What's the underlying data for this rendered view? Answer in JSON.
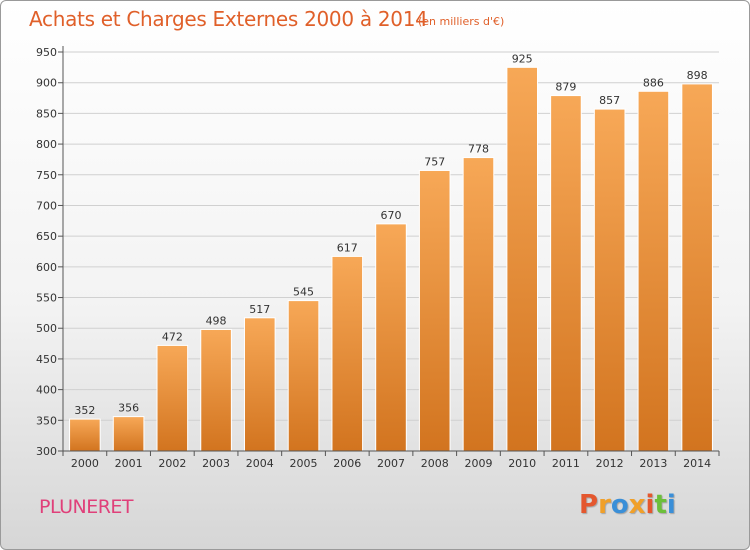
{
  "header": {
    "title": "Achats et Charges Externes 2000 à 2014",
    "subtitle": "(en milliers d'€)"
  },
  "footer": {
    "commune": "PLUNERET",
    "logo": "Proxiti"
  },
  "colors": {
    "title": "#e0602a",
    "commune": "#e0407a",
    "bar_light": "#f7a857",
    "bar_dark": "#d2741f",
    "logo_letters": [
      "#e4572e",
      "#f0a02a",
      "#3a8fd8",
      "#f0a02a",
      "#e4572e",
      "#6cbf3a",
      "#3a8fd8"
    ]
  },
  "chart_data": {
    "type": "bar",
    "title": "Achats et Charges Externes 2000 à 2014",
    "subtitle": "(en milliers d'€)",
    "categories": [
      "2000",
      "2001",
      "2002",
      "2003",
      "2004",
      "2005",
      "2006",
      "2007",
      "2008",
      "2009",
      "2010",
      "2011",
      "2012",
      "2013",
      "2014"
    ],
    "values": [
      352,
      356,
      472,
      498,
      517,
      545,
      617,
      670,
      757,
      778,
      925,
      879,
      857,
      886,
      898
    ],
    "value_labels": [
      "352",
      "356",
      "472",
      "498",
      "517",
      "545",
      "617",
      "670",
      "757",
      "778",
      "925",
      "879",
      "857",
      "886",
      "898"
    ],
    "ylim": [
      300,
      950
    ],
    "yticks": [
      "300",
      "350",
      "400",
      "450",
      "500",
      "550",
      "600",
      "650",
      "700",
      "750",
      "800",
      "850",
      "900",
      "950"
    ],
    "grid": true,
    "xlabel": "",
    "ylabel": ""
  }
}
